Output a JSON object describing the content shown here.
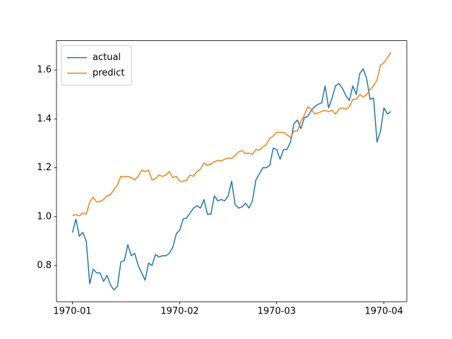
{
  "chart_data": {
    "type": "line",
    "x": [
      0,
      1,
      2,
      3,
      4,
      5,
      6,
      7,
      8,
      9,
      10,
      11,
      12,
      13,
      14,
      15,
      16,
      17,
      18,
      19,
      20,
      21,
      22,
      23,
      24,
      25,
      26,
      27,
      28,
      29,
      30,
      31,
      32,
      33,
      34,
      35,
      36,
      37,
      38,
      39,
      40,
      41,
      42,
      43,
      44,
      45,
      46,
      47,
      48,
      49,
      50,
      51,
      52,
      53,
      54,
      55,
      56,
      57,
      58,
      59,
      60,
      61,
      62,
      63,
      64,
      65,
      66,
      67,
      68,
      69,
      70,
      71,
      72,
      73,
      74,
      75,
      76,
      77,
      78,
      79,
      80,
      81,
      82,
      83,
      84,
      85,
      86,
      87,
      88,
      89,
      90,
      91,
      92
    ],
    "series": [
      {
        "name": "actual",
        "color": "#1f77b4",
        "values": [
          0.935,
          0.99,
          0.92,
          0.935,
          0.9,
          0.725,
          0.785,
          0.77,
          0.77,
          0.735,
          0.76,
          0.72,
          0.7,
          0.715,
          0.815,
          0.82,
          0.885,
          0.84,
          0.85,
          0.8,
          0.77,
          0.74,
          0.81,
          0.8,
          0.845,
          0.835,
          0.84,
          0.84,
          0.85,
          0.875,
          0.93,
          0.945,
          0.99,
          0.995,
          1.015,
          1.035,
          1.045,
          1.035,
          1.07,
          1.01,
          1.01,
          1.085,
          1.065,
          1.07,
          1.065,
          1.085,
          1.145,
          1.05,
          1.035,
          1.04,
          1.055,
          1.035,
          1.065,
          1.15,
          1.175,
          1.2,
          1.2,
          1.21,
          1.28,
          1.275,
          1.235,
          1.275,
          1.275,
          1.305,
          1.38,
          1.395,
          1.36,
          1.405,
          1.41,
          1.435,
          1.45,
          1.46,
          1.465,
          1.535,
          1.445,
          1.485,
          1.535,
          1.545,
          1.525,
          1.495,
          1.475,
          1.535,
          1.5,
          1.585,
          1.605,
          1.565,
          1.48,
          1.485,
          1.305,
          1.35,
          1.445,
          1.42,
          1.43
        ]
      },
      {
        "name": "predict",
        "color": "#ff7f0e",
        "values": [
          1.005,
          1.008,
          1.003,
          1.015,
          1.01,
          1.06,
          1.08,
          1.06,
          1.062,
          1.07,
          1.085,
          1.09,
          1.11,
          1.13,
          1.165,
          1.163,
          1.165,
          1.16,
          1.15,
          1.165,
          1.19,
          1.185,
          1.19,
          1.15,
          1.155,
          1.17,
          1.165,
          1.17,
          1.185,
          1.16,
          1.165,
          1.145,
          1.145,
          1.15,
          1.17,
          1.165,
          1.185,
          1.195,
          1.22,
          1.21,
          1.215,
          1.225,
          1.23,
          1.228,
          1.235,
          1.24,
          1.238,
          1.25,
          1.265,
          1.27,
          1.258,
          1.26,
          1.255,
          1.275,
          1.272,
          1.285,
          1.295,
          1.32,
          1.33,
          1.345,
          1.345,
          1.345,
          1.335,
          1.325,
          1.35,
          1.35,
          1.39,
          1.415,
          1.45,
          1.44,
          1.42,
          1.425,
          1.43,
          1.435,
          1.43,
          1.435,
          1.42,
          1.44,
          1.445,
          1.44,
          1.45,
          1.48,
          1.48,
          1.5,
          1.49,
          1.5,
          1.52,
          1.535,
          1.56,
          1.62,
          1.63,
          1.65,
          1.672
        ]
      }
    ],
    "xlim": [
      -4.6,
      96.6
    ],
    "xticks": [
      {
        "value": 0,
        "label": "1970-01"
      },
      {
        "value": 31,
        "label": "1970-02"
      },
      {
        "value": 59,
        "label": "1970-03"
      },
      {
        "value": 90,
        "label": "1970-04"
      }
    ],
    "ylim": [
      0.652,
      1.72
    ],
    "yticks": [
      0.8,
      {
        "value": 1,
        "label": "1.0"
      },
      1.2,
      1.4,
      1.6
    ],
    "legend": "upper left",
    "grid": false
  }
}
